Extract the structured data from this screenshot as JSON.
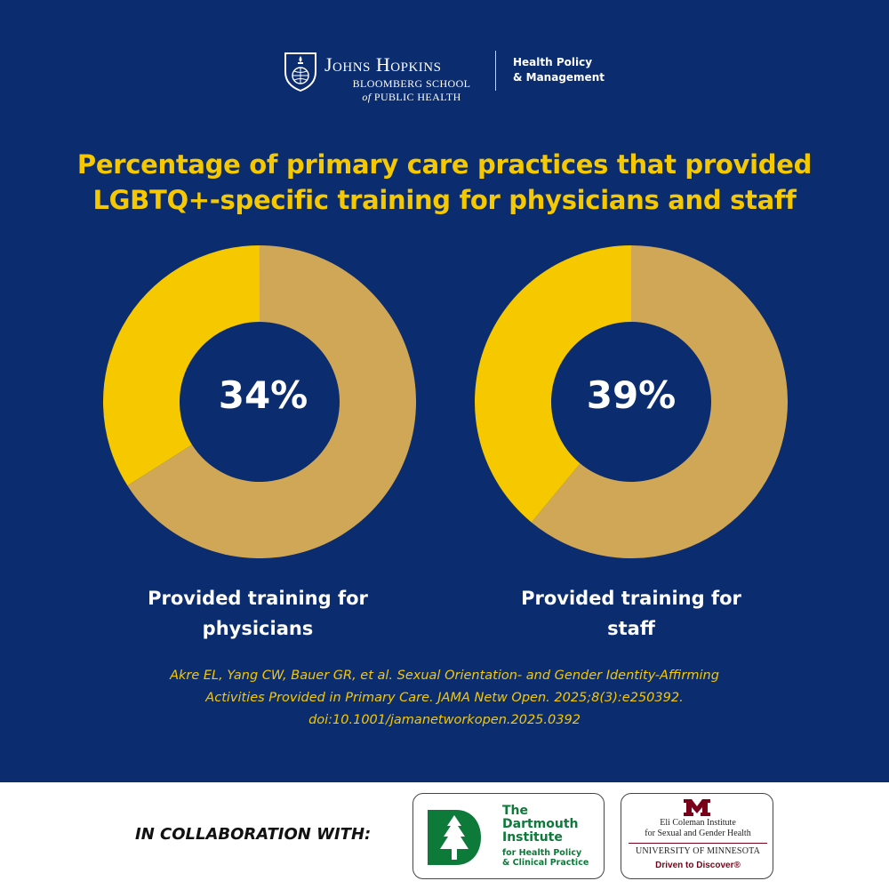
{
  "header": {
    "logo_text": "Johns Hopkins",
    "school_line1": "BLOOMBERG SCHOOL",
    "school_of": "of",
    "school_line2": "PUBLIC HEALTH",
    "dept_line1": "Health Policy",
    "dept_line2": "& Management"
  },
  "colors": {
    "background": "#0b2c6e",
    "accent_yellow": "#f5c800",
    "remainder_tan": "#d0a757",
    "text_white": "#ffffff"
  },
  "chart_data": [
    {
      "type": "pie",
      "title": "Percentage of primary care practices that provided LGBTQ+-specific training for physicians and staff",
      "value": 34,
      "center_label": "34%",
      "caption_line1": "Provided training for",
      "caption_line2": "physicians"
    },
    {
      "type": "pie",
      "title": "Percentage of primary care practices that provided LGBTQ+-specific training for physicians and staff",
      "value": 39,
      "center_label": "39%",
      "caption_line1": "Provided training for",
      "caption_line2": "staff"
    }
  ],
  "title_line1": "Percentage of primary care practices that provided",
  "title_line2": "LGBTQ+-specific training for physicians and staff",
  "citation": {
    "line1": "Akre EL, Yang CW, Bauer GR, et al. Sexual Orientation- and Gender Identity-Affirming",
    "line2": "Activities Provided in Primary Care. JAMA Netw Open. 2025;8(3):e250392.",
    "line3": "doi:10.1001/jamanetworkopen.2025.0392"
  },
  "footer": {
    "collab_label": "IN COLLABORATION WITH:",
    "dartmouth_line1": "The",
    "dartmouth_line2": "Dartmouth",
    "dartmouth_line3": "Institute",
    "dartmouth_sub1": "for Health Policy",
    "dartmouth_sub2": "& Clinical Practice",
    "umn_inst1": "Eli Coleman Institute",
    "umn_inst2": "for Sexual and Gender Health",
    "umn_univ": "UNIVERSITY OF MINNESOTA",
    "umn_tag": "Driven to Discover®"
  }
}
